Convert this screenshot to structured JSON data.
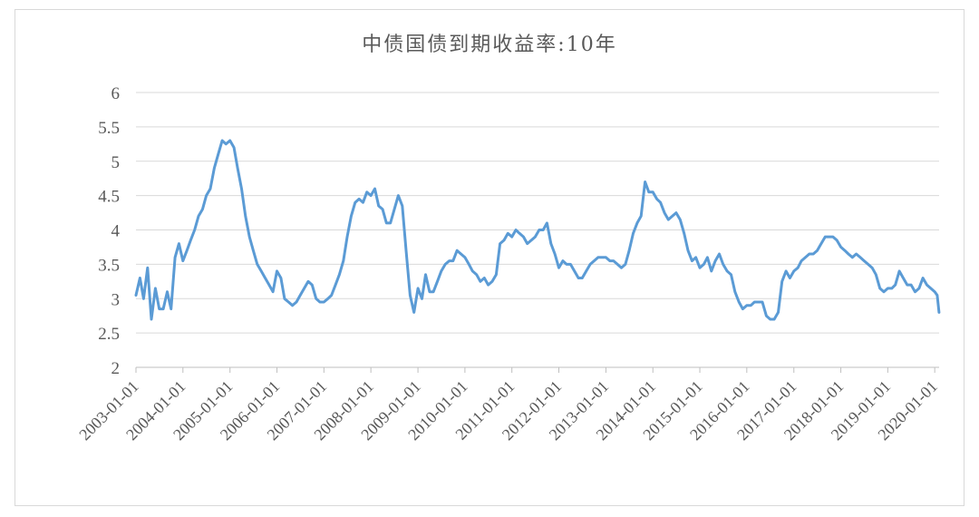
{
  "chart_data": {
    "type": "line",
    "title": "中债国债到期收益率:10年",
    "xlabel": "",
    "ylabel": "",
    "ylim": [
      2,
      6
    ],
    "y_ticks": [
      "2",
      "2.5",
      "3",
      "3.5",
      "4",
      "4.5",
      "5",
      "5.5",
      "6"
    ],
    "x_ticks": [
      "2003-01-01",
      "2004-01-01",
      "2005-01-01",
      "2006-01-01",
      "2007-01-01",
      "2008-01-01",
      "2009-01-01",
      "2010-01-01",
      "2011-01-01",
      "2012-01-01",
      "2013-01-01",
      "2014-01-01",
      "2015-01-01",
      "2016-01-01",
      "2017-01-01",
      "2018-01-01",
      "2019-01-01",
      "2020-01-01"
    ],
    "xlim": [
      "2003-01-01",
      "2020-02-04"
    ],
    "grid": true,
    "legend": "none",
    "color": "#5b9bd5",
    "series": [
      {
        "x": [
          "2003-01-01",
          "2003-02-01",
          "2003-03-01",
          "2003-04-01",
          "2003-05-01",
          "2003-06-01",
          "2003-07-01",
          "2003-08-01",
          "2003-09-01",
          "2003-10-01",
          "2003-11-01",
          "2003-12-01",
          "2004-01-01",
          "2004-02-01",
          "2004-03-01",
          "2004-04-01",
          "2004-05-01",
          "2004-06-01",
          "2004-07-01",
          "2004-08-01",
          "2004-09-01",
          "2004-10-01",
          "2004-11-01",
          "2004-12-01",
          "2005-01-01",
          "2005-02-01",
          "2005-03-01",
          "2005-04-01",
          "2005-05-01",
          "2005-06-01",
          "2005-07-01",
          "2005-08-01",
          "2005-09-01",
          "2005-10-01",
          "2005-11-01",
          "2005-12-01",
          "2006-01-01",
          "2006-02-01",
          "2006-03-01",
          "2006-04-01",
          "2006-05-01",
          "2006-06-01",
          "2006-07-01",
          "2006-08-01",
          "2006-09-01",
          "2006-10-01",
          "2006-11-01",
          "2006-12-01",
          "2007-01-01",
          "2007-02-01",
          "2007-03-01",
          "2007-04-01",
          "2007-05-01",
          "2007-06-01",
          "2007-07-01",
          "2007-08-01",
          "2007-09-01",
          "2007-10-01",
          "2007-11-01",
          "2007-12-01",
          "2008-01-01",
          "2008-02-01",
          "2008-03-01",
          "2008-04-01",
          "2008-05-01",
          "2008-06-01",
          "2008-07-01",
          "2008-08-01",
          "2008-09-01",
          "2008-10-01",
          "2008-11-01",
          "2008-12-01",
          "2009-01-01",
          "2009-02-01",
          "2009-03-01",
          "2009-04-01",
          "2009-05-01",
          "2009-06-01",
          "2009-07-01",
          "2009-08-01",
          "2009-09-01",
          "2009-10-01",
          "2009-11-01",
          "2009-12-01",
          "2010-01-01",
          "2010-02-01",
          "2010-03-01",
          "2010-04-01",
          "2010-05-01",
          "2010-06-01",
          "2010-07-01",
          "2010-08-01",
          "2010-09-01",
          "2010-10-01",
          "2010-11-01",
          "2010-12-01",
          "2011-01-01",
          "2011-02-01",
          "2011-03-01",
          "2011-04-01",
          "2011-05-01",
          "2011-06-01",
          "2011-07-01",
          "2011-08-01",
          "2011-09-01",
          "2011-10-01",
          "2011-11-01",
          "2011-12-01",
          "2012-01-01",
          "2012-02-01",
          "2012-03-01",
          "2012-04-01",
          "2012-05-01",
          "2012-06-01",
          "2012-07-01",
          "2012-08-01",
          "2012-09-01",
          "2012-10-01",
          "2012-11-01",
          "2012-12-01",
          "2013-01-01",
          "2013-02-01",
          "2013-03-01",
          "2013-04-01",
          "2013-05-01",
          "2013-06-01",
          "2013-07-01",
          "2013-08-01",
          "2013-09-01",
          "2013-10-01",
          "2013-11-01",
          "2013-12-01",
          "2014-01-01",
          "2014-02-01",
          "2014-03-01",
          "2014-04-01",
          "2014-05-01",
          "2014-06-01",
          "2014-07-01",
          "2014-08-01",
          "2014-09-01",
          "2014-10-01",
          "2014-11-01",
          "2014-12-01",
          "2015-01-01",
          "2015-02-01",
          "2015-03-01",
          "2015-04-01",
          "2015-05-01",
          "2015-06-01",
          "2015-07-01",
          "2015-08-01",
          "2015-09-01",
          "2015-10-01",
          "2015-11-01",
          "2015-12-01",
          "2016-01-01",
          "2016-02-01",
          "2016-03-01",
          "2016-04-01",
          "2016-05-01",
          "2016-06-01",
          "2016-07-01",
          "2016-08-01",
          "2016-09-01",
          "2016-10-01",
          "2016-11-01",
          "2016-12-01",
          "2017-01-01",
          "2017-02-01",
          "2017-03-01",
          "2017-04-01",
          "2017-05-01",
          "2017-06-01",
          "2017-07-01",
          "2017-08-01",
          "2017-09-01",
          "2017-10-01",
          "2017-11-01",
          "2017-12-01",
          "2018-01-01",
          "2018-02-01",
          "2018-03-01",
          "2018-04-01",
          "2018-05-01",
          "2018-06-01",
          "2018-07-01",
          "2018-08-01",
          "2018-09-01",
          "2018-10-01",
          "2018-11-01",
          "2018-12-01",
          "2019-01-01",
          "2019-02-01",
          "2019-03-01",
          "2019-04-01",
          "2019-05-01",
          "2019-06-01",
          "2019-07-01",
          "2019-08-01",
          "2019-09-01",
          "2019-10-01",
          "2019-11-01",
          "2019-12-01",
          "2020-01-01",
          "2020-01-20",
          "2020-02-03"
        ],
        "y": [
          3.05,
          3.3,
          3.0,
          3.45,
          2.7,
          3.15,
          2.85,
          2.85,
          3.1,
          2.85,
          3.6,
          3.8,
          3.55,
          3.7,
          3.85,
          4.0,
          4.2,
          4.3,
          4.5,
          4.6,
          4.9,
          5.1,
          5.3,
          5.25,
          5.3,
          5.2,
          4.9,
          4.6,
          4.2,
          3.9,
          3.7,
          3.5,
          3.4,
          3.3,
          3.2,
          3.1,
          3.4,
          3.3,
          3.0,
          2.95,
          2.9,
          2.95,
          3.05,
          3.15,
          3.25,
          3.2,
          3.0,
          2.95,
          2.95,
          3.0,
          3.05,
          3.2,
          3.35,
          3.55,
          3.9,
          4.2,
          4.4,
          4.45,
          4.4,
          4.55,
          4.5,
          4.6,
          4.35,
          4.3,
          4.1,
          4.1,
          4.3,
          4.5,
          4.35,
          3.7,
          3.05,
          2.8,
          3.15,
          3.0,
          3.35,
          3.1,
          3.1,
          3.25,
          3.4,
          3.5,
          3.55,
          3.55,
          3.7,
          3.65,
          3.6,
          3.5,
          3.4,
          3.35,
          3.25,
          3.3,
          3.2,
          3.25,
          3.35,
          3.8,
          3.85,
          3.95,
          3.9,
          4.0,
          3.95,
          3.9,
          3.8,
          3.85,
          3.9,
          4.0,
          4.0,
          4.1,
          3.8,
          3.65,
          3.45,
          3.55,
          3.5,
          3.5,
          3.4,
          3.3,
          3.3,
          3.4,
          3.5,
          3.55,
          3.6,
          3.6,
          3.6,
          3.55,
          3.55,
          3.5,
          3.45,
          3.5,
          3.7,
          3.95,
          4.1,
          4.2,
          4.7,
          4.55,
          4.55,
          4.45,
          4.4,
          4.25,
          4.15,
          4.2,
          4.25,
          4.15,
          3.95,
          3.7,
          3.55,
          3.6,
          3.45,
          3.5,
          3.6,
          3.4,
          3.55,
          3.65,
          3.5,
          3.4,
          3.35,
          3.1,
          2.95,
          2.85,
          2.9,
          2.9,
          2.95,
          2.95,
          2.95,
          2.75,
          2.7,
          2.7,
          2.8,
          3.25,
          3.4,
          3.3,
          3.4,
          3.45,
          3.55,
          3.6,
          3.65,
          3.65,
          3.7,
          3.8,
          3.9,
          3.9,
          3.9,
          3.85,
          3.75,
          3.7,
          3.65,
          3.6,
          3.65,
          3.6,
          3.55,
          3.5,
          3.45,
          3.35,
          3.15,
          3.1,
          3.15,
          3.15,
          3.2,
          3.4,
          3.3,
          3.2,
          3.2,
          3.1,
          3.15,
          3.3,
          3.2,
          3.15,
          3.1,
          3.05,
          2.8
        ]
      }
    ]
  }
}
